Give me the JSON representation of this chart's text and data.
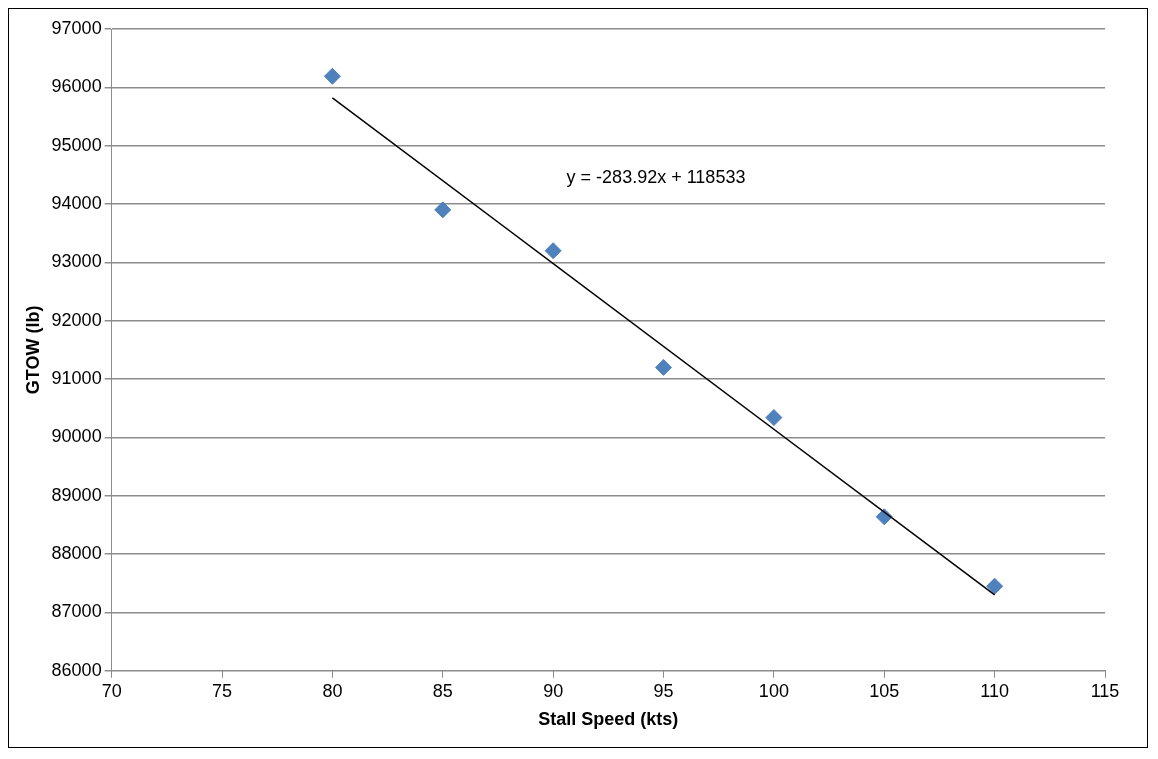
{
  "chart_data": {
    "type": "scatter",
    "xlabel": "Stall Speed (kts)",
    "ylabel": "GTOW (lb)",
    "series": [
      {
        "type": "scatter",
        "color": "#4f81bd",
        "x": [
          80,
          85,
          90,
          95,
          100,
          105,
          110
        ],
        "values": [
          96190,
          93900,
          93200,
          91200,
          90340,
          88640,
          87450
        ],
        "marker": "diamond"
      },
      {
        "type": "line",
        "color": "#000000",
        "x": [
          80,
          110
        ],
        "values": [
          95820,
          87300
        ],
        "marker": "none",
        "line_style": "solid"
      }
    ],
    "annotations": [
      "y = -283.92x + 118533"
    ],
    "xlim": [
      70,
      115
    ],
    "xticks": [
      70,
      75,
      80,
      85,
      90,
      95,
      100,
      105,
      110,
      115
    ],
    "ylim": [
      86000,
      97000
    ],
    "yticks": [
      86000,
      87000,
      88000,
      89000,
      90000,
      91000,
      92000,
      93000,
      94000,
      95000,
      96000,
      97000
    ],
    "grid": "y",
    "legend": false
  }
}
